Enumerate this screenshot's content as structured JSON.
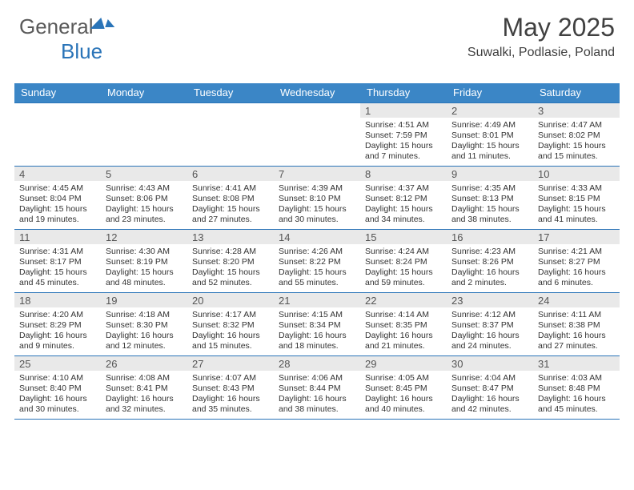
{
  "logo": {
    "part1": "General",
    "part2": "Blue"
  },
  "title": "May 2025",
  "location": "Suwalki, Podlasie, Poland",
  "colors": {
    "header_bg": "#3b86c6",
    "header_text": "#ffffff",
    "rule": "#2a74b8",
    "daynum_bg": "#e9e9e9",
    "text": "#333333",
    "page_bg": "#ffffff"
  },
  "headers": [
    "Sunday",
    "Monday",
    "Tuesday",
    "Wednesday",
    "Thursday",
    "Friday",
    "Saturday"
  ],
  "weeks": [
    [
      {
        "n": "",
        "sr": "",
        "ss": "",
        "dl": ""
      },
      {
        "n": "",
        "sr": "",
        "ss": "",
        "dl": ""
      },
      {
        "n": "",
        "sr": "",
        "ss": "",
        "dl": ""
      },
      {
        "n": "",
        "sr": "",
        "ss": "",
        "dl": ""
      },
      {
        "n": "1",
        "sr": "Sunrise: 4:51 AM",
        "ss": "Sunset: 7:59 PM",
        "dl": "Daylight: 15 hours and 7 minutes."
      },
      {
        "n": "2",
        "sr": "Sunrise: 4:49 AM",
        "ss": "Sunset: 8:01 PM",
        "dl": "Daylight: 15 hours and 11 minutes."
      },
      {
        "n": "3",
        "sr": "Sunrise: 4:47 AM",
        "ss": "Sunset: 8:02 PM",
        "dl": "Daylight: 15 hours and 15 minutes."
      }
    ],
    [
      {
        "n": "4",
        "sr": "Sunrise: 4:45 AM",
        "ss": "Sunset: 8:04 PM",
        "dl": "Daylight: 15 hours and 19 minutes."
      },
      {
        "n": "5",
        "sr": "Sunrise: 4:43 AM",
        "ss": "Sunset: 8:06 PM",
        "dl": "Daylight: 15 hours and 23 minutes."
      },
      {
        "n": "6",
        "sr": "Sunrise: 4:41 AM",
        "ss": "Sunset: 8:08 PM",
        "dl": "Daylight: 15 hours and 27 minutes."
      },
      {
        "n": "7",
        "sr": "Sunrise: 4:39 AM",
        "ss": "Sunset: 8:10 PM",
        "dl": "Daylight: 15 hours and 30 minutes."
      },
      {
        "n": "8",
        "sr": "Sunrise: 4:37 AM",
        "ss": "Sunset: 8:12 PM",
        "dl": "Daylight: 15 hours and 34 minutes."
      },
      {
        "n": "9",
        "sr": "Sunrise: 4:35 AM",
        "ss": "Sunset: 8:13 PM",
        "dl": "Daylight: 15 hours and 38 minutes."
      },
      {
        "n": "10",
        "sr": "Sunrise: 4:33 AM",
        "ss": "Sunset: 8:15 PM",
        "dl": "Daylight: 15 hours and 41 minutes."
      }
    ],
    [
      {
        "n": "11",
        "sr": "Sunrise: 4:31 AM",
        "ss": "Sunset: 8:17 PM",
        "dl": "Daylight: 15 hours and 45 minutes."
      },
      {
        "n": "12",
        "sr": "Sunrise: 4:30 AM",
        "ss": "Sunset: 8:19 PM",
        "dl": "Daylight: 15 hours and 48 minutes."
      },
      {
        "n": "13",
        "sr": "Sunrise: 4:28 AM",
        "ss": "Sunset: 8:20 PM",
        "dl": "Daylight: 15 hours and 52 minutes."
      },
      {
        "n": "14",
        "sr": "Sunrise: 4:26 AM",
        "ss": "Sunset: 8:22 PM",
        "dl": "Daylight: 15 hours and 55 minutes."
      },
      {
        "n": "15",
        "sr": "Sunrise: 4:24 AM",
        "ss": "Sunset: 8:24 PM",
        "dl": "Daylight: 15 hours and 59 minutes."
      },
      {
        "n": "16",
        "sr": "Sunrise: 4:23 AM",
        "ss": "Sunset: 8:26 PM",
        "dl": "Daylight: 16 hours and 2 minutes."
      },
      {
        "n": "17",
        "sr": "Sunrise: 4:21 AM",
        "ss": "Sunset: 8:27 PM",
        "dl": "Daylight: 16 hours and 6 minutes."
      }
    ],
    [
      {
        "n": "18",
        "sr": "Sunrise: 4:20 AM",
        "ss": "Sunset: 8:29 PM",
        "dl": "Daylight: 16 hours and 9 minutes."
      },
      {
        "n": "19",
        "sr": "Sunrise: 4:18 AM",
        "ss": "Sunset: 8:30 PM",
        "dl": "Daylight: 16 hours and 12 minutes."
      },
      {
        "n": "20",
        "sr": "Sunrise: 4:17 AM",
        "ss": "Sunset: 8:32 PM",
        "dl": "Daylight: 16 hours and 15 minutes."
      },
      {
        "n": "21",
        "sr": "Sunrise: 4:15 AM",
        "ss": "Sunset: 8:34 PM",
        "dl": "Daylight: 16 hours and 18 minutes."
      },
      {
        "n": "22",
        "sr": "Sunrise: 4:14 AM",
        "ss": "Sunset: 8:35 PM",
        "dl": "Daylight: 16 hours and 21 minutes."
      },
      {
        "n": "23",
        "sr": "Sunrise: 4:12 AM",
        "ss": "Sunset: 8:37 PM",
        "dl": "Daylight: 16 hours and 24 minutes."
      },
      {
        "n": "24",
        "sr": "Sunrise: 4:11 AM",
        "ss": "Sunset: 8:38 PM",
        "dl": "Daylight: 16 hours and 27 minutes."
      }
    ],
    [
      {
        "n": "25",
        "sr": "Sunrise: 4:10 AM",
        "ss": "Sunset: 8:40 PM",
        "dl": "Daylight: 16 hours and 30 minutes."
      },
      {
        "n": "26",
        "sr": "Sunrise: 4:08 AM",
        "ss": "Sunset: 8:41 PM",
        "dl": "Daylight: 16 hours and 32 minutes."
      },
      {
        "n": "27",
        "sr": "Sunrise: 4:07 AM",
        "ss": "Sunset: 8:43 PM",
        "dl": "Daylight: 16 hours and 35 minutes."
      },
      {
        "n": "28",
        "sr": "Sunrise: 4:06 AM",
        "ss": "Sunset: 8:44 PM",
        "dl": "Daylight: 16 hours and 38 minutes."
      },
      {
        "n": "29",
        "sr": "Sunrise: 4:05 AM",
        "ss": "Sunset: 8:45 PM",
        "dl": "Daylight: 16 hours and 40 minutes."
      },
      {
        "n": "30",
        "sr": "Sunrise: 4:04 AM",
        "ss": "Sunset: 8:47 PM",
        "dl": "Daylight: 16 hours and 42 minutes."
      },
      {
        "n": "31",
        "sr": "Sunrise: 4:03 AM",
        "ss": "Sunset: 8:48 PM",
        "dl": "Daylight: 16 hours and 45 minutes."
      }
    ]
  ]
}
